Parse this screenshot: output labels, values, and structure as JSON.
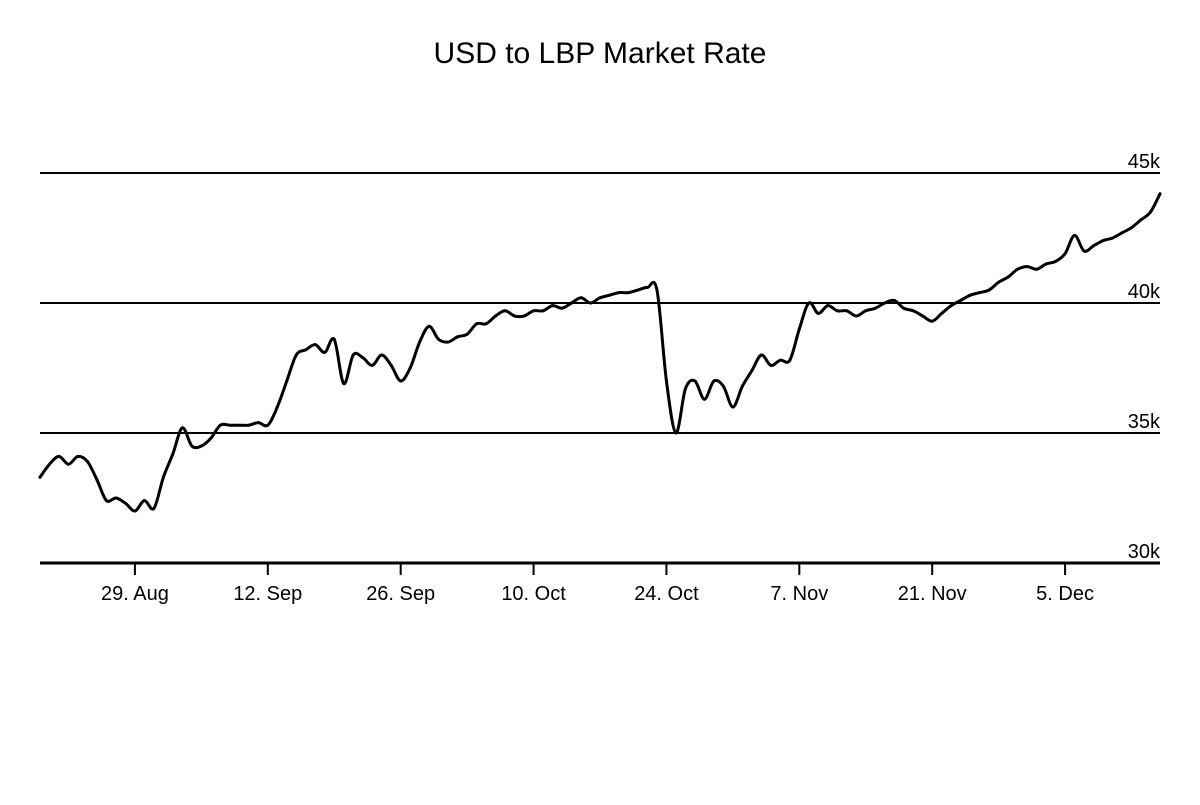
{
  "chart_data": {
    "type": "line",
    "title": "USD to LBP Market Rate",
    "xlabel": "",
    "ylabel": "",
    "x_axis_type": "date",
    "x_range": [
      "2022-08-19",
      "2022-12-15"
    ],
    "ylim": [
      30000,
      45000
    ],
    "grid": "horizontal lines at y ticks",
    "legend": "none",
    "y_ticks": [
      {
        "value": 30000,
        "label": "30k"
      },
      {
        "value": 35000,
        "label": "35k"
      },
      {
        "value": 40000,
        "label": "40k"
      },
      {
        "value": 45000,
        "label": "45k"
      }
    ],
    "x_ticks": [
      {
        "date": "2022-08-29",
        "label": "29. Aug"
      },
      {
        "date": "2022-09-12",
        "label": "12. Sep"
      },
      {
        "date": "2022-09-26",
        "label": "26. Sep"
      },
      {
        "date": "2022-10-10",
        "label": "10. Oct"
      },
      {
        "date": "2022-10-24",
        "label": "24. Oct"
      },
      {
        "date": "2022-11-07",
        "label": "7. Nov"
      },
      {
        "date": "2022-11-21",
        "label": "21. Nov"
      },
      {
        "date": "2022-12-05",
        "label": "5. Dec"
      }
    ],
    "series": [
      {
        "color": "#000000",
        "x": [
          "2022-08-19",
          "2022-08-20",
          "2022-08-21",
          "2022-08-22",
          "2022-08-23",
          "2022-08-24",
          "2022-08-25",
          "2022-08-26",
          "2022-08-27",
          "2022-08-28",
          "2022-08-29",
          "2022-08-30",
          "2022-08-31",
          "2022-09-01",
          "2022-09-02",
          "2022-09-03",
          "2022-09-04",
          "2022-09-05",
          "2022-09-06",
          "2022-09-07",
          "2022-09-08",
          "2022-09-09",
          "2022-09-10",
          "2022-09-11",
          "2022-09-12",
          "2022-09-13",
          "2022-09-14",
          "2022-09-15",
          "2022-09-16",
          "2022-09-17",
          "2022-09-18",
          "2022-09-19",
          "2022-09-20",
          "2022-09-21",
          "2022-09-22",
          "2022-09-23",
          "2022-09-24",
          "2022-09-25",
          "2022-09-26",
          "2022-09-27",
          "2022-09-28",
          "2022-09-29",
          "2022-09-30",
          "2022-10-01",
          "2022-10-02",
          "2022-10-03",
          "2022-10-04",
          "2022-10-05",
          "2022-10-06",
          "2022-10-07",
          "2022-10-08",
          "2022-10-09",
          "2022-10-10",
          "2022-10-11",
          "2022-10-12",
          "2022-10-13",
          "2022-10-14",
          "2022-10-15",
          "2022-10-16",
          "2022-10-17",
          "2022-10-18",
          "2022-10-19",
          "2022-10-20",
          "2022-10-21",
          "2022-10-22",
          "2022-10-23",
          "2022-10-24",
          "2022-10-25",
          "2022-10-26",
          "2022-10-27",
          "2022-10-28",
          "2022-10-29",
          "2022-10-30",
          "2022-10-31",
          "2022-11-01",
          "2022-11-02",
          "2022-11-03",
          "2022-11-04",
          "2022-11-05",
          "2022-11-06",
          "2022-11-07",
          "2022-11-08",
          "2022-11-09",
          "2022-11-10",
          "2022-11-11",
          "2022-11-12",
          "2022-11-13",
          "2022-11-14",
          "2022-11-15",
          "2022-11-16",
          "2022-11-17",
          "2022-11-18",
          "2022-11-19",
          "2022-11-20",
          "2022-11-21",
          "2022-11-22",
          "2022-11-23",
          "2022-11-24",
          "2022-11-25",
          "2022-11-26",
          "2022-11-27",
          "2022-11-28",
          "2022-11-29",
          "2022-11-30",
          "2022-12-01",
          "2022-12-02",
          "2022-12-03",
          "2022-12-04",
          "2022-12-05",
          "2022-12-06",
          "2022-12-07",
          "2022-12-08",
          "2022-12-09",
          "2022-12-10",
          "2022-12-11",
          "2022-12-12",
          "2022-12-13",
          "2022-12-14",
          "2022-12-15"
        ],
        "y": [
          33300,
          33800,
          34100,
          33800,
          34100,
          33900,
          33200,
          32400,
          32500,
          32300,
          32000,
          32400,
          32100,
          33300,
          34200,
          35200,
          34500,
          34500,
          34800,
          35300,
          35300,
          35300,
          35300,
          35400,
          35300,
          36000,
          37000,
          38000,
          38200,
          38400,
          38100,
          38600,
          36900,
          38000,
          37900,
          37600,
          38000,
          37600,
          37000,
          37500,
          38500,
          39100,
          38600,
          38500,
          38700,
          38800,
          39200,
          39200,
          39500,
          39700,
          39500,
          39500,
          39700,
          39700,
          39900,
          39800,
          40000,
          40200,
          40000,
          40200,
          40300,
          40400,
          40400,
          40500,
          40600,
          40500,
          37000,
          35000,
          36700,
          37000,
          36300,
          37000,
          36800,
          36000,
          36800,
          37400,
          38000,
          37600,
          37800,
          37800,
          39000,
          40000,
          39600,
          39900,
          39700,
          39700,
          39500,
          39700,
          39800,
          40000,
          40100,
          39800,
          39700,
          39500,
          39300,
          39600,
          39900,
          40100,
          40300,
          40400,
          40500,
          40800,
          41000,
          41300,
          41400,
          41300,
          41500,
          41600,
          41900,
          42600,
          42000,
          42200,
          42400,
          42500,
          42700,
          42900,
          43200,
          43500,
          44200
        ]
      }
    ]
  }
}
